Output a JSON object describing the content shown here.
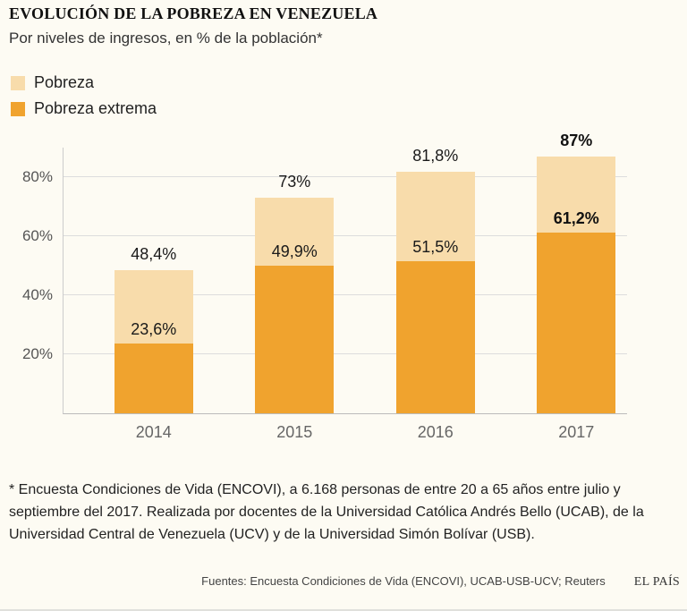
{
  "colors": {
    "background": "#fdfbf3",
    "bar_light": "#f8dcab",
    "bar_dark": "#f0a32e",
    "grid": "#dddddd"
  },
  "header": {
    "title": "EVOLUCIÓN DE LA POBREZA EN VENEZUELA",
    "subtitle": "Por niveles de ingresos, en % de la población*"
  },
  "legend": [
    {
      "label": "Pobreza",
      "color": "#f8dcab"
    },
    {
      "label": "Pobreza extrema",
      "color": "#f0a32e"
    }
  ],
  "chart_data": {
    "type": "bar",
    "stacked": true,
    "categories": [
      "2014",
      "2015",
      "2016",
      "2017"
    ],
    "series": [
      {
        "name": "Pobreza extrema",
        "color": "#f0a32e",
        "values": [
          23.6,
          49.9,
          51.5,
          61.2
        ],
        "labels": [
          "23,6%",
          "49,9%",
          "51,5%",
          "61,2%"
        ]
      },
      {
        "name": "Pobreza (total)",
        "color": "#f8dcab",
        "values": [
          48.4,
          73,
          81.8,
          87
        ],
        "labels": [
          "48,4%",
          "73%",
          "81,8%",
          "87%"
        ]
      }
    ],
    "emphasis_index": 3,
    "xlabel": "",
    "ylabel": "",
    "ylim": [
      0,
      90
    ],
    "yticks": [
      20,
      40,
      60,
      80
    ],
    "ytick_labels": [
      "20%",
      "40%",
      "60%",
      "80%"
    ],
    "grid": true,
    "legend_position": "top-left"
  },
  "footnote": "* Encuesta Condiciones de Vida (ENCOVI), a 6.168 personas de entre  20 a 65 años entre julio y septiembre del 2017. Realizada por docentes de la Universidad Católica Andrés Bello (UCAB), de la Universidad Central de Venezuela (UCV) y de la Universidad Simón Bolívar (USB).",
  "sources": "Fuentes: Encuesta Condiciones de Vida (ENCOVI), UCAB-USB-UCV; Reuters",
  "brand": "EL PAÍS"
}
